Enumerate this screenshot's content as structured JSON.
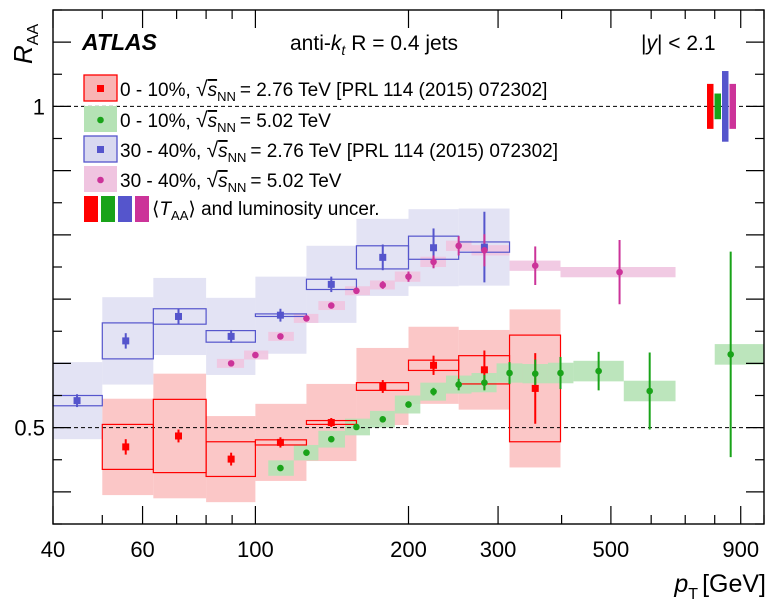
{
  "chart_data": {
    "type": "scatter",
    "title": "ATLAS",
    "subtitle": "anti-k_t R = 0.4 jets",
    "header_jet": {
      "prefix": "anti-",
      "k": "k",
      "k_sub": "t",
      "rest": "R = 0.4 jets"
    },
    "header_rapidity": {
      "pipe_left": "|",
      "y": "y",
      "rest": "| < 2.1"
    },
    "xlabel": {
      "p": "p",
      "sub": "T",
      "unit": "[GeV]"
    },
    "ylabel": {
      "main": "R",
      "sub": "AA"
    },
    "xscale": "log",
    "xlim": [
      40,
      1000
    ],
    "ylim": [
      0.35,
      1.15
    ],
    "x_ticks": [
      {
        "value": 40,
        "label": "40"
      },
      {
        "value": 60,
        "label": "60"
      },
      {
        "value": 100,
        "label": "100"
      },
      {
        "value": 200,
        "label": "200"
      },
      {
        "value": 300,
        "label": "300"
      },
      {
        "value": 500,
        "label": "500"
      },
      {
        "value": 900,
        "label": "900"
      }
    ],
    "y_ticks": [
      {
        "value": 0.5,
        "label": "0.5"
      },
      {
        "value": 1.0,
        "label": "1"
      }
    ],
    "reference_lines": [
      0.5,
      1.0
    ],
    "legend": [
      {
        "series": "r276c",
        "label_prefix": "0 - 10%,",
        "energy": "= 2.76 TeV [PRL 114 (2015) 072302]"
      },
      {
        "series": "r502c",
        "label_prefix": "0 - 10%,",
        "energy": "= 5.02 TeV"
      },
      {
        "series": "r276p",
        "label_prefix": "30 - 40%,",
        "energy": "= 2.76 TeV [PRL 114 (2015) 072302]"
      },
      {
        "series": "r502p",
        "label_prefix": "30 - 40%,",
        "energy": "= 5.02 TeV"
      }
    ],
    "sqrt_s": {
      "s": "s",
      "sub": "NN"
    },
    "taa_legend": {
      "symbol": "T",
      "sub": "AA",
      "text": "and luminosity uncer."
    },
    "taa_bars": [
      {
        "series": "r276c",
        "lo": 0.965,
        "hi": 1.035
      },
      {
        "series": "r502c",
        "lo": 0.98,
        "hi": 1.02
      },
      {
        "series": "r276p",
        "lo": 0.945,
        "hi": 1.055
      },
      {
        "series": "r502p",
        "lo": 0.965,
        "hi": 1.035
      }
    ],
    "series": [
      {
        "id": "r276c",
        "name": "0 - 10%, 2.76 TeV",
        "color": "#ff0000",
        "fill": "#f9b4b4",
        "marker": "square",
        "sys_style": "open-box",
        "points": [
          {
            "x": 55.6,
            "y": 0.47,
            "stat": 0.012,
            "sys": 0.035,
            "xlo": 50,
            "xhi": 63
          },
          {
            "x": 70.6,
            "y": 0.487,
            "stat": 0.01,
            "sys": 0.057,
            "xlo": 63,
            "xhi": 80
          },
          {
            "x": 89.6,
            "y": 0.451,
            "stat": 0.01,
            "sys": 0.027,
            "xlo": 80,
            "xhi": 100
          },
          {
            "x": 112,
            "y": 0.477,
            "stat": 0.008,
            "sys": 0.004,
            "xlo": 100,
            "xhi": 126
          },
          {
            "x": 141,
            "y": 0.508,
            "stat": 0.007,
            "sys": 0.003,
            "xlo": 126,
            "xhi": 158
          },
          {
            "x": 178,
            "y": 0.564,
            "stat": 0.01,
            "sys": 0.006,
            "xlo": 158,
            "xhi": 200
          },
          {
            "x": 224,
            "y": 0.597,
            "stat": 0.015,
            "sys": 0.008,
            "xlo": 200,
            "xhi": 251
          },
          {
            "x": 282,
            "y": 0.59,
            "stat": 0.03,
            "sys": 0.022,
            "xlo": 251,
            "xhi": 316
          },
          {
            "x": 355,
            "y": 0.561,
            "stat": 0.055,
            "sys": 0.083,
            "xlo": 316,
            "xhi": 398
          }
        ]
      },
      {
        "id": "r502c",
        "name": "0 - 10%, 5.02 TeV",
        "color": "#19a319",
        "fill": "#b5e2b5",
        "marker": "circle",
        "sys_style": "filled-box",
        "points": [
          {
            "x": 112,
            "y": 0.437,
            "stat": 0.004,
            "sys": 0.012,
            "xlo": 106,
            "xhi": 119
          },
          {
            "x": 126,
            "y": 0.461,
            "stat": 0.004,
            "sys": 0.012,
            "xlo": 119,
            "xhi": 133
          },
          {
            "x": 141,
            "y": 0.482,
            "stat": 0.004,
            "sys": 0.013,
            "xlo": 133,
            "xhi": 150
          },
          {
            "x": 158,
            "y": 0.501,
            "stat": 0.004,
            "sys": 0.013,
            "xlo": 150,
            "xhi": 168
          },
          {
            "x": 178,
            "y": 0.513,
            "stat": 0.004,
            "sys": 0.013,
            "xlo": 168,
            "xhi": 188
          },
          {
            "x": 200,
            "y": 0.536,
            "stat": 0.005,
            "sys": 0.014,
            "xlo": 188,
            "xhi": 211
          },
          {
            "x": 224,
            "y": 0.556,
            "stat": 0.006,
            "sys": 0.014,
            "xlo": 211,
            "xhi": 237
          },
          {
            "x": 251,
            "y": 0.567,
            "stat": 0.009,
            "sys": 0.014,
            "xlo": 237,
            "xhi": 266
          },
          {
            "x": 282,
            "y": 0.57,
            "stat": 0.012,
            "sys": 0.015,
            "xlo": 266,
            "xhi": 298
          },
          {
            "x": 316,
            "y": 0.585,
            "stat": 0.017,
            "sys": 0.015,
            "xlo": 298,
            "xhi": 335
          },
          {
            "x": 355,
            "y": 0.584,
            "stat": 0.022,
            "sys": 0.015,
            "xlo": 335,
            "xhi": 376
          },
          {
            "x": 398,
            "y": 0.585,
            "stat": 0.025,
            "sys": 0.016,
            "xlo": 376,
            "xhi": 422
          },
          {
            "x": 473,
            "y": 0.588,
            "stat": 0.03,
            "sys": 0.016,
            "xlo": 422,
            "xhi": 530
          },
          {
            "x": 596,
            "y": 0.557,
            "stat": 0.06,
            "sys": 0.016,
            "xlo": 530,
            "xhi": 670
          },
          {
            "x": 860,
            "y": 0.614,
            "stat": 0.16,
            "sys": 0.016,
            "xlo": 800,
            "xhi": 1000
          }
        ]
      },
      {
        "id": "r276p",
        "name": "30 - 40%, 2.76 TeV",
        "color": "#5555cc",
        "fill": "#d9d9f0",
        "marker": "square",
        "sys_style": "open-box",
        "points": [
          {
            "x": 44.6,
            "y": 0.542,
            "stat": 0.01,
            "sys": 0.008,
            "xlo": 40,
            "xhi": 50
          },
          {
            "x": 55.6,
            "y": 0.635,
            "stat": 0.012,
            "sys": 0.028,
            "xlo": 50,
            "xhi": 63
          },
          {
            "x": 70.6,
            "y": 0.673,
            "stat": 0.012,
            "sys": 0.012,
            "xlo": 63,
            "xhi": 80
          },
          {
            "x": 89.6,
            "y": 0.642,
            "stat": 0.01,
            "sys": 0.009,
            "xlo": 80,
            "xhi": 100
          },
          {
            "x": 112,
            "y": 0.675,
            "stat": 0.01,
            "sys": 0.002,
            "xlo": 100,
            "xhi": 126
          },
          {
            "x": 141,
            "y": 0.723,
            "stat": 0.012,
            "sys": 0.008,
            "xlo": 126,
            "xhi": 158
          },
          {
            "x": 178,
            "y": 0.765,
            "stat": 0.02,
            "sys": 0.018,
            "xlo": 158,
            "xhi": 200
          },
          {
            "x": 224,
            "y": 0.78,
            "stat": 0.03,
            "sys": 0.018,
            "xlo": 200,
            "xhi": 251
          },
          {
            "x": 282,
            "y": 0.781,
            "stat": 0.055,
            "sys": 0.008,
            "xlo": 251,
            "xhi": 316
          }
        ]
      },
      {
        "id": "r502p",
        "name": "30 - 40%, 5.02 TeV",
        "color": "#cc3399",
        "fill": "#f0c4e0",
        "marker": "circle",
        "sys_style": "filled-box",
        "points": [
          {
            "x": 89.6,
            "y": 0.6,
            "stat": 0.004,
            "sys": 0.007,
            "xlo": 84,
            "xhi": 95
          },
          {
            "x": 100,
            "y": 0.613,
            "stat": 0.004,
            "sys": 0.007,
            "xlo": 95,
            "xhi": 106
          },
          {
            "x": 112,
            "y": 0.642,
            "stat": 0.004,
            "sys": 0.007,
            "xlo": 106,
            "xhi": 119
          },
          {
            "x": 126,
            "y": 0.67,
            "stat": 0.004,
            "sys": 0.007,
            "xlo": 119,
            "xhi": 133
          },
          {
            "x": 141,
            "y": 0.69,
            "stat": 0.004,
            "sys": 0.007,
            "xlo": 133,
            "xhi": 150
          },
          {
            "x": 158,
            "y": 0.713,
            "stat": 0.005,
            "sys": 0.007,
            "xlo": 150,
            "xhi": 168
          },
          {
            "x": 178,
            "y": 0.722,
            "stat": 0.006,
            "sys": 0.007,
            "xlo": 168,
            "xhi": 188
          },
          {
            "x": 200,
            "y": 0.735,
            "stat": 0.008,
            "sys": 0.008,
            "xlo": 188,
            "xhi": 211
          },
          {
            "x": 224,
            "y": 0.758,
            "stat": 0.01,
            "sys": 0.008,
            "xlo": 211,
            "xhi": 237
          },
          {
            "x": 251,
            "y": 0.783,
            "stat": 0.015,
            "sys": 0.008,
            "xlo": 237,
            "xhi": 266
          },
          {
            "x": 282,
            "y": 0.776,
            "stat": 0.025,
            "sys": 0.008,
            "xlo": 266,
            "xhi": 316
          },
          {
            "x": 355,
            "y": 0.752,
            "stat": 0.03,
            "sys": 0.008,
            "xlo": 316,
            "xhi": 398
          },
          {
            "x": 520,
            "y": 0.742,
            "stat": 0.05,
            "sys": 0.008,
            "xlo": 398,
            "xhi": 670
          }
        ]
      }
    ]
  }
}
